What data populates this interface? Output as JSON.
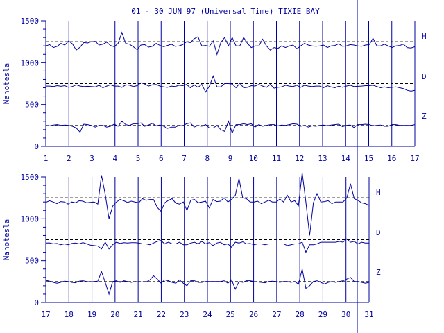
{
  "title": "01 - 30 JUN 97 (Universal Time) TIXIE BAY",
  "colors": {
    "ink": "#0000a0",
    "background": "#ffffff"
  },
  "chart_data": [
    {
      "type": "line",
      "ylabel": "Nanotesla",
      "xlim": [
        1,
        17
      ],
      "ylim": [
        0,
        1500
      ],
      "yticks": [
        "0",
        "500",
        "1000",
        "1500"
      ],
      "xticks": [
        "1",
        "2",
        "3",
        "4",
        "5",
        "6",
        "7",
        "8",
        "9",
        "10",
        "11",
        "12",
        "13",
        "14",
        "15",
        "16",
        "17"
      ],
      "baselines": [
        1250,
        750,
        250
      ],
      "grid": "vertical lines at each day",
      "series": [
        {
          "name": "H",
          "base": 1200,
          "values": [
            1200,
            1215,
            1180,
            1195,
            1230,
            1210,
            1260,
            1225,
            1150,
            1185,
            1240,
            1235,
            1250,
            1255,
            1210,
            1220,
            1245,
            1205,
            1190,
            1230,
            1360,
            1230,
            1220,
            1190,
            1155,
            1210,
            1215,
            1185,
            1195,
            1230,
            1205,
            1190,
            1205,
            1220,
            1195,
            1200,
            1215,
            1250,
            1240,
            1285,
            1310,
            1200,
            1205,
            1195,
            1260,
            1100,
            1240,
            1300,
            1200,
            1300,
            1200,
            1200,
            1300,
            1230,
            1180,
            1200,
            1200,
            1280,
            1200,
            1150,
            1180,
            1170,
            1200,
            1180,
            1200,
            1210,
            1165,
            1200,
            1230,
            1210,
            1200,
            1195,
            1200,
            1210,
            1180,
            1200,
            1205,
            1225,
            1195,
            1200,
            1215,
            1210,
            1200,
            1195,
            1210,
            1215,
            1290,
            1200,
            1200,
            1220,
            1200,
            1180,
            1200,
            1205,
            1220,
            1180,
            1175,
            1190
          ]
        },
        {
          "name": "D",
          "base": 720,
          "values": [
            720,
            720,
            715,
            725,
            718,
            725,
            705,
            715,
            735,
            720,
            715,
            718,
            715,
            710,
            730,
            700,
            720,
            735,
            720,
            720,
            705,
            735,
            730,
            715,
            725,
            760,
            745,
            720,
            735,
            740,
            720,
            710,
            705,
            720,
            715,
            730,
            725,
            740,
            700,
            735,
            705,
            740,
            650,
            720,
            840,
            710,
            710,
            750,
            750,
            745,
            700,
            755,
            700,
            705,
            725,
            720,
            740,
            720,
            705,
            740,
            695,
            705,
            710,
            730,
            720,
            715,
            730,
            705,
            730,
            720,
            715,
            720,
            720,
            700,
            725,
            710,
            700,
            720,
            705,
            720,
            730,
            715,
            718,
            720,
            725,
            725,
            730,
            715,
            700,
            710,
            700,
            705,
            710,
            700,
            690,
            670,
            660,
            670
          ]
        },
        {
          "name": "Z",
          "base": 250,
          "values": [
            250,
            245,
            255,
            260,
            250,
            255,
            250,
            240,
            220,
            170,
            265,
            260,
            250,
            230,
            250,
            250,
            230,
            240,
            265,
            240,
            300,
            260,
            250,
            270,
            270,
            280,
            240,
            255,
            275,
            245,
            255,
            240,
            215,
            230,
            230,
            250,
            245,
            270,
            280,
            230,
            250,
            240,
            260,
            220,
            220,
            250,
            200,
            180,
            300,
            160,
            260,
            260,
            270,
            260,
            270,
            230,
            260,
            240,
            250,
            260,
            260,
            245,
            255,
            250,
            260,
            270,
            265,
            240,
            250,
            230,
            245,
            240,
            250,
            255,
            245,
            255,
            260,
            265,
            235,
            250,
            255,
            225,
            260,
            260,
            265,
            260,
            245,
            250,
            255,
            240,
            240,
            260,
            260,
            250,
            250,
            250,
            250,
            260
          ]
        }
      ]
    },
    {
      "type": "line",
      "ylabel": "Nanotesla",
      "xlim": [
        17,
        31
      ],
      "ylim": [
        0,
        1500
      ],
      "yticks": [
        "0",
        "500",
        "1000",
        "1500"
      ],
      "xticks": [
        "17",
        "18",
        "19",
        "20",
        "21",
        "22",
        "23",
        "24",
        "25",
        "26",
        "27",
        "28",
        "29",
        "30",
        "31"
      ],
      "baselines": [
        1250,
        750,
        250
      ],
      "grid": "vertical lines at each day",
      "series": [
        {
          "name": "H",
          "base": 1200,
          "values": [
            1195,
            1215,
            1200,
            1180,
            1205,
            1200,
            1175,
            1200,
            1190,
            1215,
            1210,
            1190,
            1195,
            1200,
            1175,
            1520,
            1290,
            1000,
            1150,
            1200,
            1230,
            1215,
            1195,
            1210,
            1200,
            1190,
            1240,
            1220,
            1230,
            1230,
            1135,
            1090,
            1190,
            1220,
            1240,
            1185,
            1175,
            1200,
            1100,
            1220,
            1230,
            1190,
            1200,
            1210,
            1130,
            1230,
            1205,
            1210,
            1250,
            1200,
            1230,
            1280,
            1480,
            1250,
            1240,
            1200,
            1200,
            1210,
            1180,
            1200,
            1220,
            1200,
            1200,
            1235,
            1200,
            1280,
            1200,
            1215,
            1155,
            1550,
            1200,
            800,
            1190,
            1300,
            1200,
            1205,
            1215,
            1180,
            1200,
            1200,
            1200,
            1250,
            1420,
            1240,
            1220,
            1190,
            1180,
            1160
          ]
        },
        {
          "name": "D",
          "base": 720,
          "values": [
            710,
            712,
            700,
            705,
            690,
            700,
            690,
            705,
            710,
            700,
            715,
            700,
            685,
            680,
            675,
            640,
            720,
            640,
            690,
            720,
            705,
            715,
            710,
            715,
            715,
            710,
            700,
            700,
            690,
            710,
            730,
            740,
            700,
            720,
            700,
            700,
            720,
            690,
            690,
            710,
            720,
            700,
            730,
            700,
            715,
            680,
            710,
            720,
            690,
            700,
            660,
            720,
            710,
            725,
            700,
            705,
            690,
            700,
            700,
            690,
            700,
            700,
            700,
            700,
            700,
            680,
            690,
            700,
            700,
            720,
            600,
            690,
            690,
            700,
            720,
            720,
            720,
            720,
            720,
            730,
            720,
            760,
            720,
            730,
            700,
            720,
            710,
            710
          ]
        },
        {
          "name": "Z",
          "base": 250,
          "values": [
            265,
            255,
            240,
            230,
            240,
            255,
            250,
            240,
            235,
            255,
            260,
            250,
            245,
            250,
            255,
            370,
            240,
            100,
            250,
            260,
            240,
            260,
            250,
            240,
            250,
            245,
            245,
            245,
            270,
            320,
            280,
            230,
            270,
            260,
            240,
            230,
            270,
            230,
            200,
            260,
            260,
            240,
            240,
            250,
            250,
            250,
            250,
            250,
            260,
            230,
            270,
            160,
            250,
            240,
            260,
            260,
            250,
            245,
            240,
            235,
            250,
            255,
            250,
            240,
            250,
            250,
            240,
            250,
            220,
            400,
            170,
            200,
            250,
            260,
            240,
            220,
            240,
            250,
            240,
            250,
            260,
            280,
            300,
            250,
            250,
            240,
            230,
            240
          ]
        }
      ]
    }
  ]
}
